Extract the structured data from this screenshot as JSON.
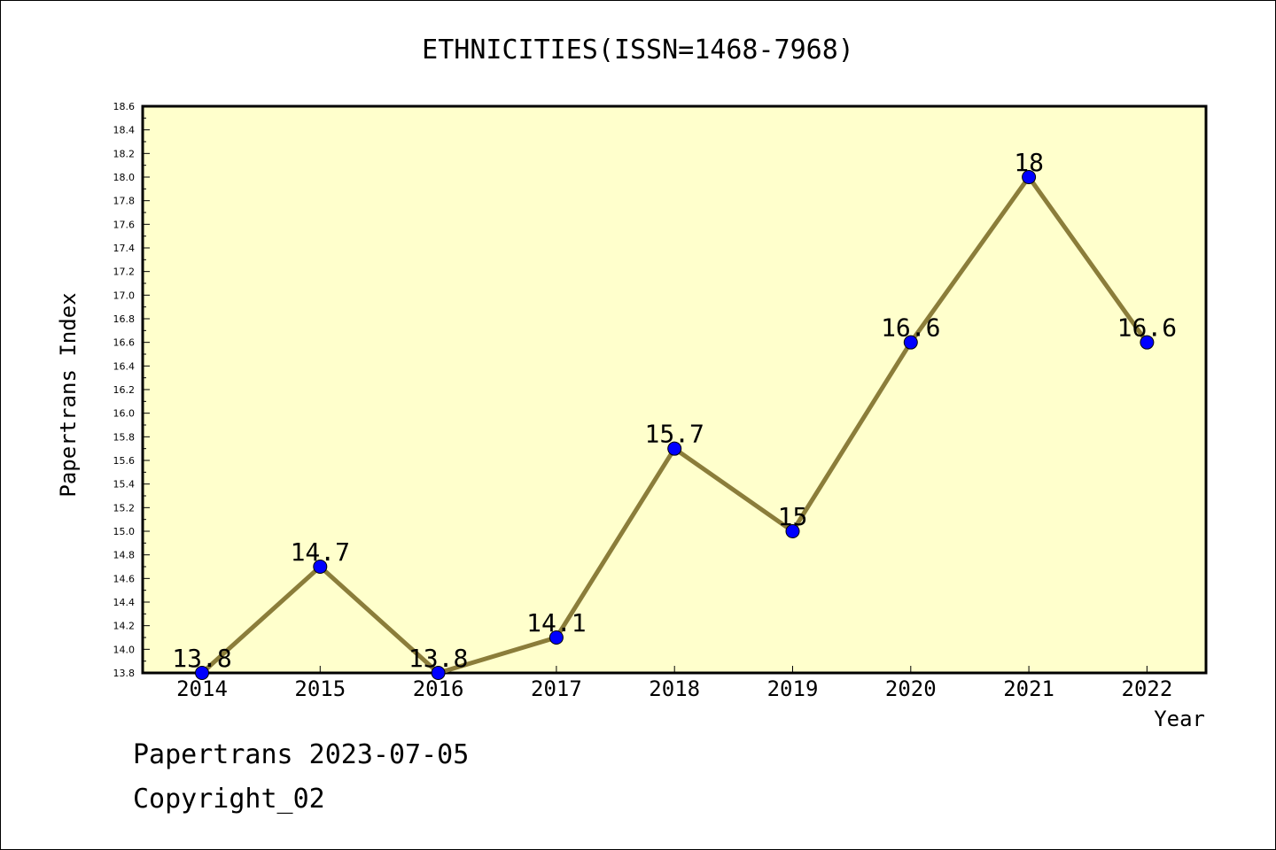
{
  "chart_data": {
    "type": "line",
    "title": "ETHNICITIES(ISSN=1468-7968)",
    "xlabel": "Year",
    "ylabel": "Papertrans Index",
    "categories": [
      "2014",
      "2015",
      "2016",
      "2017",
      "2018",
      "2019",
      "2020",
      "2021",
      "2022"
    ],
    "values": [
      13.8,
      14.7,
      13.8,
      14.1,
      15.7,
      15.0,
      16.6,
      18.0,
      16.6
    ],
    "data_labels": [
      "13.8",
      "14.7",
      "13.8",
      "14.1",
      "15.7",
      "15",
      "16.6",
      "18",
      "16.6"
    ],
    "ylim": [
      13.8,
      18.6
    ],
    "yticks": [
      "13.8",
      "14.0",
      "14.2",
      "14.4",
      "14.6",
      "14.8",
      "15.0",
      "15.2",
      "15.4",
      "15.6",
      "15.8",
      "16.0",
      "16.2",
      "16.4",
      "16.6",
      "16.8",
      "17.0",
      "17.2",
      "17.4",
      "17.6",
      "17.8",
      "18.0",
      "18.2",
      "18.4",
      "18.6"
    ],
    "grid": false,
    "colors": {
      "plot_background": "#ffffcc",
      "line": "#8b7d3a",
      "marker": "#0000ff"
    }
  },
  "footer": {
    "line1": "Papertrans 2023-07-05",
    "line2": "Copyright_02"
  }
}
